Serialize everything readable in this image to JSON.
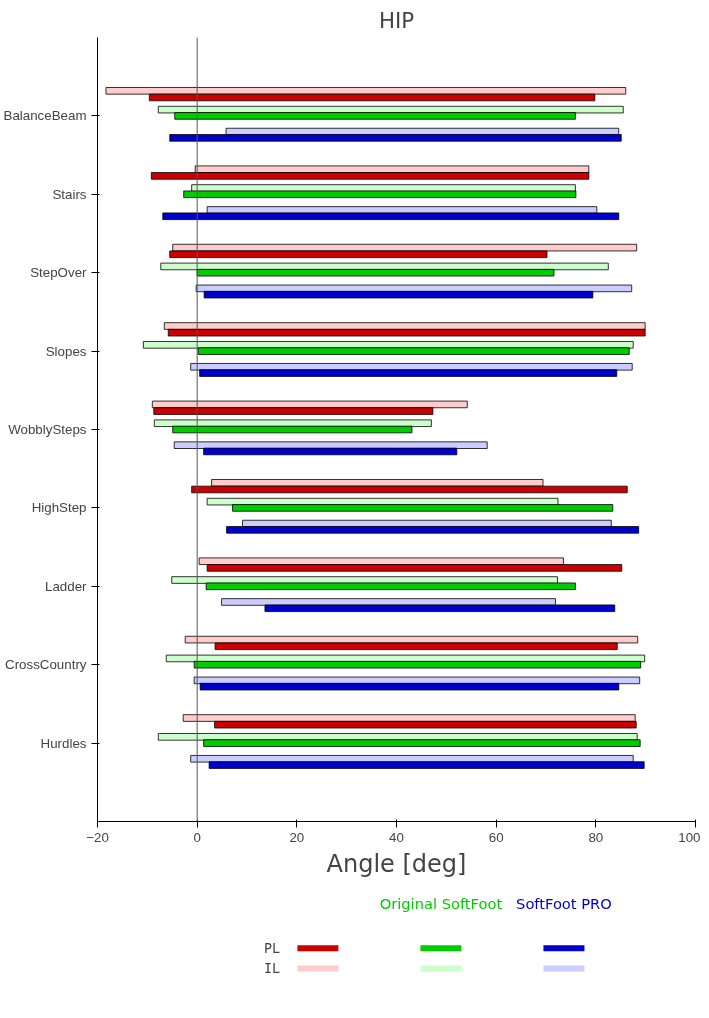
{
  "chart_data": {
    "type": "bar",
    "orientation": "horizontal",
    "title": "HIP",
    "xlabel": "Angle [deg]",
    "categories": [
      "BalanceBeam",
      "Stairs",
      "StepOver",
      "Slopes",
      "WobblySteps",
      "HighStep",
      "Ladder",
      "CrossCountry",
      "Hurdles"
    ],
    "xlim": [
      -20,
      100
    ],
    "xticks": [
      -20,
      0,
      20,
      40,
      60,
      80,
      100
    ],
    "grid": false,
    "legend": "bottom",
    "ref_lines": [
      {
        "axis": "x",
        "value": 0,
        "color": "#555555"
      }
    ],
    "annotations": [
      "Original SoftFoot",
      "SoftFoot PRO"
    ],
    "series": [
      {
        "name": "IL",
        "color": "#ffcccc",
        "base": [
          -18.3,
          -0.4,
          -4.9,
          -6.6,
          -9.0,
          2.9,
          0.4,
          -2.4,
          -2.8
        ],
        "values": [
          104.3,
          79.0,
          93.1,
          96.5,
          63.2,
          66.5,
          73.1,
          90.8,
          90.7
        ]
      },
      {
        "name": "PL",
        "color": "#cc0000",
        "base": [
          -9.6,
          -9.2,
          -5.5,
          -5.8,
          -8.7,
          -1.1,
          2.0,
          3.6,
          3.5
        ],
        "values": [
          89.4,
          87.8,
          75.7,
          95.7,
          56.0,
          87.4,
          83.2,
          80.7,
          84.6
        ]
      },
      {
        "color": "#ccffcc",
        "base": [
          -7.8,
          -1.1,
          -7.3,
          -10.8,
          -8.6,
          2.0,
          -5.1,
          -6.2,
          -7.8
        ],
        "values": [
          93.3,
          77.0,
          89.8,
          98.3,
          55.6,
          70.4,
          77.4,
          96.0,
          96.1
        ]
      },
      {
        "color": "#00cc00",
        "base": [
          -4.5,
          -2.7,
          0.0,
          0.2,
          -4.9,
          7.1,
          1.8,
          -0.6,
          1.3
        ],
        "values": [
          80.4,
          78.7,
          71.6,
          86.5,
          48.0,
          76.3,
          74.1,
          89.6,
          87.6
        ]
      },
      {
        "color": "#ccccff",
        "base": [
          5.8,
          2.0,
          -0.2,
          -1.3,
          -4.6,
          9.1,
          4.9,
          -0.6,
          -1.3
        ],
        "values": [
          78.8,
          78.2,
          87.4,
          88.6,
          62.8,
          74.0,
          67.0,
          89.4,
          88.8
        ]
      },
      {
        "color": "#0000cc",
        "base": [
          -5.5,
          -6.9,
          1.4,
          0.5,
          1.3,
          5.9,
          13.6,
          0.6,
          2.4
        ],
        "values": [
          90.6,
          91.5,
          78.0,
          83.7,
          50.8,
          82.7,
          70.2,
          84.0,
          87.3
        ]
      }
    ]
  }
}
